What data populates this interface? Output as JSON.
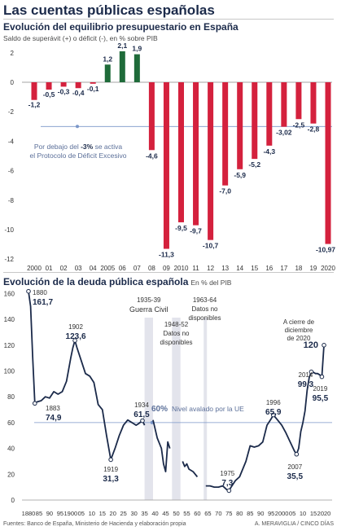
{
  "header": {
    "title": "Las cuentas públicas españolas"
  },
  "colors": {
    "surplus": "#1f6b3a",
    "deficit": "#d4213d",
    "line": "#1b2a4a",
    "threshold": "#7a96c8",
    "band": "#e3e4ec"
  },
  "chart_data": [
    {
      "type": "bar",
      "title": "Evolución del equilibrio presupuestario en España",
      "subtitle": "Saldo de superávit (+) o déficit (-), en % sobre PIB",
      "categories": [
        "2000",
        "2001",
        "2002",
        "2003",
        "2004",
        "2005",
        "2006",
        "2007",
        "2008",
        "2009",
        "2010",
        "2011",
        "2012",
        "2013",
        "2014",
        "2015",
        "2016",
        "2017",
        "2018",
        "2019",
        "2020"
      ],
      "x_tick_labels": [
        "2000",
        "01",
        "02",
        "03",
        "04",
        "2005",
        "06",
        "07",
        "08",
        "09",
        "2010",
        "11",
        "12",
        "13",
        "14",
        "15",
        "16",
        "17",
        "18",
        "19",
        "2020"
      ],
      "values": [
        -1.2,
        -0.5,
        -0.3,
        -0.4,
        -0.1,
        1.2,
        2.1,
        1.9,
        -4.6,
        -11.3,
        -9.5,
        -9.7,
        -10.7,
        -7.0,
        -5.9,
        -5.2,
        -4.3,
        -3.02,
        -2.5,
        -2.8,
        -10.97
      ],
      "value_labels": [
        "-1,2",
        "-0,5",
        "-0,3",
        "-0,4",
        "-0,1",
        "1,2",
        "2,1",
        "1,9",
        "-4,6",
        "-11,3",
        "-9,5",
        "-9,7",
        "-10,7",
        "-7,0",
        "-5,9",
        "-5,2",
        "-4,3",
        "-3,02",
        "-2,5",
        "-2,8",
        "-10,97"
      ],
      "yticks": [
        2,
        0,
        -2,
        -4,
        -6,
        -8,
        -10,
        -12
      ],
      "ylim": [
        -12,
        2.5
      ],
      "threshold": {
        "value": -3,
        "label_pre": "Por debajo del ",
        "label_value": "-3%",
        "label_post": " se activa",
        "label_line2": "el Protocolo de Déficit Excesivo"
      },
      "grid": false
    },
    {
      "type": "line",
      "title": "Evolución de la deuda pública española",
      "subtitle": "En % del PIB",
      "ylim": [
        0,
        160
      ],
      "yticks": [
        160,
        140,
        120,
        100,
        80,
        60,
        40,
        20,
        0
      ],
      "xlim": [
        1879,
        2021
      ],
      "x_ticks": [
        1880,
        1885,
        1890,
        1895,
        1900,
        1905,
        1910,
        1915,
        1920,
        1925,
        1930,
        1935,
        1940,
        1945,
        1950,
        1955,
        1960,
        1965,
        1970,
        1975,
        1980,
        1985,
        1990,
        1995,
        2000,
        2005,
        2010,
        2015,
        2020
      ],
      "x_tick_labels": [
        "1880",
        "85",
        "90",
        "95",
        "1900",
        "05",
        "10",
        "15",
        "20",
        "25",
        "30",
        "35",
        "40",
        "45",
        "50",
        "55",
        "60",
        "65",
        "70",
        "75",
        "80",
        "85",
        "90",
        "95",
        "2000",
        "05",
        "10",
        "15",
        "2020"
      ],
      "segments": [
        [
          [
            1880,
            161.7
          ],
          [
            1881,
            150
          ],
          [
            1882,
            110
          ],
          [
            1883,
            74.9
          ],
          [
            1884,
            76
          ],
          [
            1886,
            77
          ],
          [
            1888,
            80
          ],
          [
            1890,
            79
          ],
          [
            1892,
            84
          ],
          [
            1894,
            82
          ],
          [
            1896,
            84
          ],
          [
            1898,
            92
          ],
          [
            1900,
            110
          ],
          [
            1901,
            118
          ],
          [
            1902,
            123.6
          ],
          [
            1903,
            118
          ],
          [
            1905,
            108
          ],
          [
            1907,
            98
          ],
          [
            1909,
            96
          ],
          [
            1911,
            91
          ],
          [
            1913,
            74
          ],
          [
            1915,
            70
          ],
          [
            1917,
            50
          ],
          [
            1919,
            31.3
          ],
          [
            1921,
            40
          ],
          [
            1923,
            50
          ],
          [
            1925,
            58
          ],
          [
            1927,
            62
          ],
          [
            1929,
            60
          ],
          [
            1931,
            58
          ],
          [
            1932,
            59
          ],
          [
            1934,
            61.5
          ],
          [
            1935,
            58
          ]
        ],
        [
          [
            1939,
            62
          ],
          [
            1940,
            55
          ],
          [
            1941,
            48
          ],
          [
            1942,
            44
          ],
          [
            1943,
            40
          ],
          [
            1944,
            28
          ],
          [
            1945,
            22
          ],
          [
            1946,
            45
          ],
          [
            1947,
            40
          ]
        ],
        [
          [
            1953,
            30
          ],
          [
            1954,
            26
          ],
          [
            1955,
            28
          ],
          [
            1956,
            24
          ],
          [
            1958,
            22
          ],
          [
            1960,
            18
          ]
        ],
        [
          [
            1964,
            11
          ],
          [
            1966,
            11
          ],
          [
            1968,
            10
          ],
          [
            1970,
            10
          ],
          [
            1972,
            11
          ],
          [
            1974,
            8
          ],
          [
            1975,
            7.3
          ],
          [
            1976,
            10
          ],
          [
            1978,
            15
          ],
          [
            1980,
            18
          ],
          [
            1983,
            30
          ],
          [
            1985,
            42
          ],
          [
            1987,
            41
          ],
          [
            1989,
            42
          ],
          [
            1991,
            45
          ],
          [
            1993,
            58
          ],
          [
            1995,
            63
          ],
          [
            1996,
            65.9
          ],
          [
            1998,
            62
          ],
          [
            2000,
            58
          ],
          [
            2002,
            52
          ],
          [
            2004,
            45
          ],
          [
            2006,
            38
          ],
          [
            2007,
            35.5
          ],
          [
            2008,
            40
          ],
          [
            2009,
            53
          ],
          [
            2010,
            60
          ],
          [
            2011,
            69
          ],
          [
            2012,
            85
          ],
          [
            2013,
            95
          ],
          [
            2014,
            99.3
          ],
          [
            2015,
            99
          ],
          [
            2016,
            98
          ],
          [
            2017,
            98
          ],
          [
            2018,
            97
          ],
          [
            2019,
            95.5
          ],
          [
            2020,
            120
          ]
        ]
      ],
      "bands": [
        {
          "from": 1935,
          "to": 1939,
          "label1": "1935-39",
          "label2": "Guerra Civil"
        },
        {
          "from": 1948,
          "to": 1952,
          "label1": "1948-52",
          "label2": "Datos no",
          "label3": "disponibles"
        },
        {
          "from": 1963,
          "to": 1964,
          "label1": "1963-64",
          "label2": "Datos no",
          "label3": "disponibles"
        }
      ],
      "annotations": [
        {
          "year": 1880,
          "value": 161.7,
          "year_label": "1880",
          "value_label": "161,7"
        },
        {
          "year": 1883,
          "value": 74.9,
          "year_label": "1883",
          "value_label": "74,9"
        },
        {
          "year": 1902,
          "value": 123.6,
          "year_label": "1902",
          "value_label": "123,6"
        },
        {
          "year": 1919,
          "value": 31.3,
          "year_label": "1919",
          "value_label": "31,3"
        },
        {
          "year": 1934,
          "value": 61.5,
          "year_label": "1934",
          "value_label": "61,5"
        },
        {
          "year": 1975,
          "value": 7.3,
          "year_label": "1975",
          "value_label": "7,3"
        },
        {
          "year": 1996,
          "value": 65.9,
          "year_label": "1996",
          "value_label": "65,9"
        },
        {
          "year": 2007,
          "value": 35.5,
          "year_label": "2007",
          "value_label": "35,5"
        },
        {
          "year": 2014,
          "value": 99.3,
          "year_label": "2014",
          "value_label": "99,3"
        },
        {
          "year": 2019,
          "value": 95.5,
          "year_label": "2019",
          "value_label": "95,5"
        },
        {
          "year": 2020,
          "value": 120,
          "year_label": "A cierre de diciembre de 2020",
          "value_label": "120"
        }
      ],
      "threshold": {
        "value": 60,
        "label_value": "60%",
        "label_text": "Nivel avalado por la UE"
      },
      "grid": false
    }
  ],
  "footer": {
    "sources": "Fuentes: Banco de España, Ministerio de Hacienda y elaboración propia",
    "credit": "A. MERAVIGLIA / CINCO DÍAS"
  }
}
